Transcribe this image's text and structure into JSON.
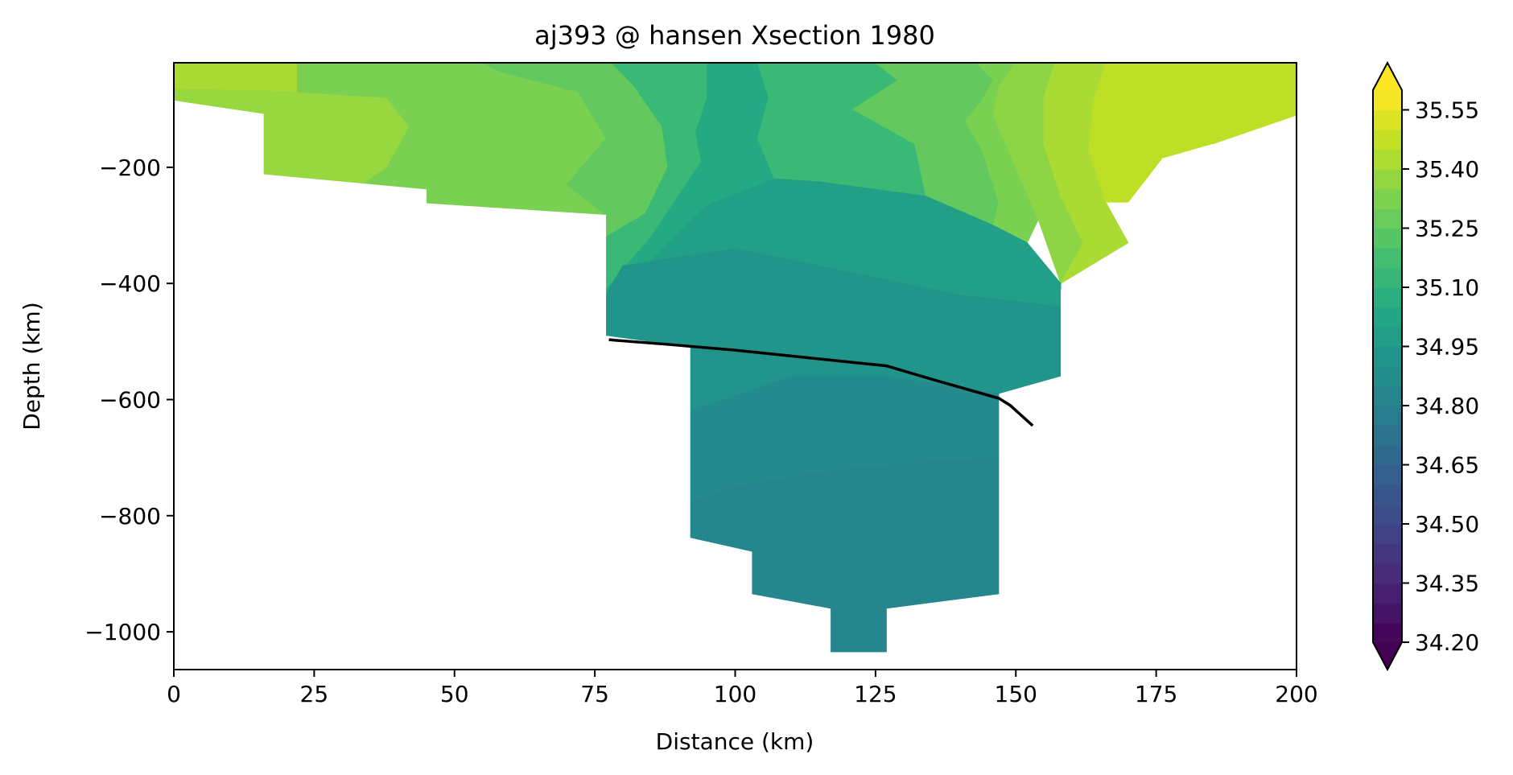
{
  "chart_data": {
    "type": "contour",
    "title": "aj393 @ hansen Xsection 1980",
    "xlabel": "Distance (km)",
    "ylabel": "Depth (km)",
    "xlim": [
      0,
      200
    ],
    "ylim": [
      -1065,
      -20
    ],
    "xticks": [
      0,
      25,
      50,
      75,
      100,
      125,
      150,
      175,
      200
    ],
    "yticks": [
      -200,
      -400,
      -600,
      -800,
      -1000
    ],
    "grid": false,
    "colorbar": {
      "colormap": "viridis",
      "vmin": 34.2,
      "vmax": 35.6,
      "levels_step": 0.05,
      "extend": "both",
      "tick_values": [
        34.2,
        34.35,
        34.5,
        34.65,
        34.8,
        34.95,
        35.1,
        35.25,
        35.4,
        35.55
      ],
      "tick_labels": [
        "34.20",
        "34.35",
        "34.50",
        "34.65",
        "34.80",
        "34.95",
        "35.10",
        "35.25",
        "35.40",
        "35.55"
      ]
    },
    "regions": [
      {
        "value": 35.42,
        "points": [
          [
            0,
            -20
          ],
          [
            22,
            -20
          ],
          [
            22,
            -70
          ],
          [
            0,
            -65
          ]
        ]
      },
      {
        "value": 35.38,
        "points": [
          [
            0,
            -65
          ],
          [
            22,
            -70
          ],
          [
            38,
            -80
          ],
          [
            42,
            -130
          ],
          [
            38,
            -200
          ],
          [
            30,
            -255
          ],
          [
            25,
            -258
          ],
          [
            16,
            -212
          ],
          [
            16,
            -108
          ],
          [
            0,
            -90
          ]
        ]
      },
      {
        "value": 35.32,
        "points": [
          [
            22,
            -20
          ],
          [
            55,
            -20
          ],
          [
            58,
            -35
          ],
          [
            72,
            -70
          ],
          [
            77,
            -150
          ],
          [
            70,
            -230
          ],
          [
            77,
            -282
          ],
          [
            45,
            -262
          ],
          [
            30,
            -255
          ],
          [
            38,
            -200
          ],
          [
            42,
            -130
          ],
          [
            38,
            -80
          ],
          [
            22,
            -70
          ]
        ]
      },
      {
        "value": 35.26,
        "points": [
          [
            55,
            -20
          ],
          [
            78,
            -20
          ],
          [
            82,
            -60
          ],
          [
            87,
            -130
          ],
          [
            88,
            -200
          ],
          [
            84,
            -280
          ],
          [
            77,
            -320
          ],
          [
            77,
            -282
          ],
          [
            70,
            -230
          ],
          [
            77,
            -150
          ],
          [
            72,
            -70
          ],
          [
            58,
            -35
          ]
        ]
      },
      {
        "value": 35.14,
        "points": [
          [
            78,
            -20
          ],
          [
            95,
            -20
          ],
          [
            95,
            -80
          ],
          [
            93,
            -140
          ],
          [
            94,
            -190
          ],
          [
            85,
            -320
          ],
          [
            77,
            -410
          ],
          [
            77,
            -320
          ],
          [
            84,
            -280
          ],
          [
            88,
            -200
          ],
          [
            87,
            -130
          ],
          [
            82,
            -60
          ]
        ]
      },
      {
        "value": 35.05,
        "points": [
          [
            95,
            -20
          ],
          [
            107,
            -20
          ],
          [
            106,
            -80
          ],
          [
            104,
            -150
          ],
          [
            107,
            -220
          ],
          [
            95,
            -265
          ],
          [
            85,
            -360
          ],
          [
            77,
            -490
          ],
          [
            77,
            -410
          ],
          [
            85,
            -320
          ],
          [
            94,
            -190
          ],
          [
            93,
            -140
          ],
          [
            95,
            -80
          ]
        ]
      },
      {
        "value": 35.14,
        "points": [
          [
            104,
            -20
          ],
          [
            125,
            -20
          ],
          [
            129,
            -50
          ],
          [
            121,
            -100
          ],
          [
            132,
            -160
          ],
          [
            134,
            -250
          ],
          [
            115,
            -225
          ],
          [
            107,
            -220
          ],
          [
            104,
            -150
          ],
          [
            106,
            -80
          ]
        ]
      },
      {
        "value": 35.26,
        "points": [
          [
            125,
            -20
          ],
          [
            143,
            -20
          ],
          [
            146,
            -50
          ],
          [
            144,
            -85
          ],
          [
            141,
            -120
          ],
          [
            144,
            -170
          ],
          [
            147,
            -260
          ],
          [
            146,
            -300
          ],
          [
            134,
            -250
          ],
          [
            132,
            -160
          ],
          [
            121,
            -100
          ],
          [
            129,
            -50
          ]
        ]
      },
      {
        "value": 35.32,
        "points": [
          [
            143,
            -20
          ],
          [
            150,
            -20
          ],
          [
            147,
            -60
          ],
          [
            146,
            -110
          ],
          [
            150,
            -200
          ],
          [
            154,
            -290
          ],
          [
            152,
            -330
          ],
          [
            146,
            -300
          ],
          [
            147,
            -260
          ],
          [
            144,
            -170
          ],
          [
            141,
            -120
          ],
          [
            144,
            -85
          ],
          [
            146,
            -50
          ]
        ]
      },
      {
        "value": 35.36,
        "points": [
          [
            150,
            -20
          ],
          [
            157,
            -20
          ],
          [
            155,
            -80
          ],
          [
            155,
            -160
          ],
          [
            158,
            -250
          ],
          [
            162,
            -330
          ],
          [
            158,
            -400
          ],
          [
            154,
            -290
          ],
          [
            150,
            -200
          ],
          [
            146,
            -110
          ],
          [
            147,
            -60
          ]
        ]
      },
      {
        "value": 35.42,
        "points": [
          [
            157,
            -20
          ],
          [
            166,
            -20
          ],
          [
            164,
            -80
          ],
          [
            163,
            -170
          ],
          [
            166,
            -260
          ],
          [
            170,
            -330
          ],
          [
            158,
            -400
          ],
          [
            162,
            -330
          ],
          [
            158,
            -250
          ],
          [
            155,
            -160
          ],
          [
            155,
            -80
          ]
        ]
      },
      {
        "value": 35.46,
        "points": [
          [
            166,
            -20
          ],
          [
            200,
            -20
          ],
          [
            200,
            -110
          ],
          [
            185,
            -160
          ],
          [
            176,
            -185
          ],
          [
            170,
            -260
          ],
          [
            166,
            -260
          ],
          [
            163,
            -170
          ],
          [
            164,
            -80
          ]
        ]
      },
      {
        "value": 34.99,
        "points": [
          [
            107,
            -220
          ],
          [
            115,
            -225
          ],
          [
            134,
            -250
          ],
          [
            146,
            -300
          ],
          [
            152,
            -330
          ],
          [
            158,
            -400
          ],
          [
            158,
            -440
          ],
          [
            140,
            -420
          ],
          [
            125,
            -390
          ],
          [
            100,
            -340
          ],
          [
            80,
            -370
          ],
          [
            77,
            -420
          ],
          [
            77,
            -490
          ],
          [
            85,
            -360
          ],
          [
            95,
            -265
          ]
        ]
      },
      {
        "value": 34.92,
        "points": [
          [
            77,
            -490
          ],
          [
            77,
            -420
          ],
          [
            80,
            -370
          ],
          [
            100,
            -340
          ],
          [
            125,
            -390
          ],
          [
            140,
            -420
          ],
          [
            158,
            -440
          ],
          [
            158,
            -560
          ],
          [
            147,
            -590
          ],
          [
            127,
            -560
          ],
          [
            110,
            -560
          ],
          [
            92,
            -620
          ],
          [
            92,
            -520
          ],
          [
            78,
            -497
          ]
        ]
      },
      {
        "value": 34.86,
        "points": [
          [
            92,
            -620
          ],
          [
            110,
            -560
          ],
          [
            127,
            -560
          ],
          [
            147,
            -590
          ],
          [
            147,
            -700
          ],
          [
            120,
            -720
          ],
          [
            100,
            -750
          ],
          [
            92,
            -780
          ]
        ]
      },
      {
        "value": 34.84,
        "points": [
          [
            92,
            -780
          ],
          [
            100,
            -750
          ],
          [
            120,
            -720
          ],
          [
            147,
            -700
          ],
          [
            147,
            -935
          ],
          [
            127,
            -960
          ],
          [
            127,
            -1035
          ],
          [
            117,
            -1035
          ],
          [
            117,
            -960
          ],
          [
            103,
            -935
          ],
          [
            103,
            -862
          ],
          [
            92,
            -838
          ]
        ]
      }
    ],
    "mask": {
      "bottom_profile": [
        [
          0,
          -85
        ],
        [
          16,
          -108
        ],
        [
          16,
          -212
        ],
        [
          45,
          -238
        ],
        [
          45,
          -262
        ],
        [
          77,
          -282
        ],
        [
          77,
          -490
        ],
        [
          92,
          -510
        ],
        [
          92,
          -838
        ],
        [
          103,
          -862
        ],
        [
          103,
          -935
        ],
        [
          117,
          -960
        ],
        [
          117,
          -1035
        ],
        [
          127,
          -1035
        ],
        [
          127,
          -960
        ],
        [
          147,
          -935
        ],
        [
          147,
          -590
        ],
        [
          158,
          -560
        ],
        [
          158,
          -410
        ],
        [
          170,
          -388
        ],
        [
          170,
          -330
        ],
        [
          176,
          -313
        ],
        [
          176,
          -185
        ],
        [
          185,
          -160
        ],
        [
          192,
          -160
        ],
        [
          200,
          -140
        ]
      ]
    },
    "line": {
      "name": "",
      "color": "#000000",
      "x": [
        77.5,
        88,
        100,
        110,
        120,
        127,
        135,
        147,
        149,
        153
      ],
      "y": [
        -497,
        -505,
        -515,
        -525,
        -535,
        -542,
        -565,
        -598,
        -610,
        -645
      ]
    }
  }
}
